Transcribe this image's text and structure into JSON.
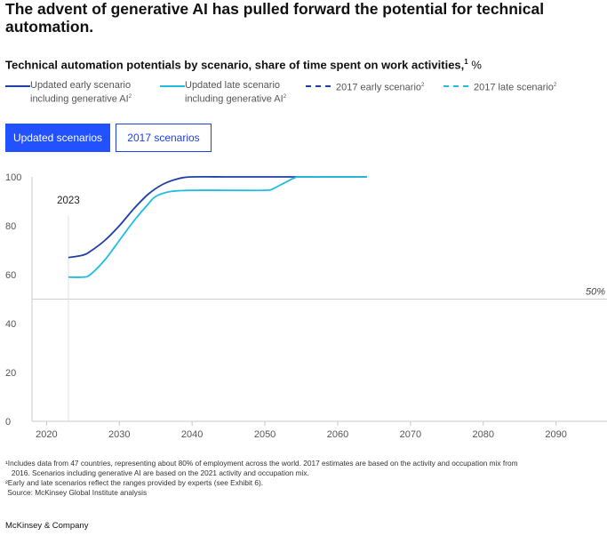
{
  "headline": "The advent of generative AI has pulled forward the potential for technical automation.",
  "subtitle": {
    "text": "Technical automation potentials by scenario, share of time spent on work activities,",
    "sup": "1",
    "unit": "%"
  },
  "legend": [
    {
      "line1": "Updated early scenario",
      "line2": "including generative AI",
      "sup": "2",
      "color": "#1f3fa8",
      "style": "solid"
    },
    {
      "line1": "Updated late scenario",
      "line2": "including generative AI",
      "sup": "2",
      "color": "#1fbde0",
      "style": "solid"
    },
    {
      "line1": "2017 early scenario",
      "line2": "",
      "sup": "2",
      "color": "#1f3fa8",
      "style": "dashed"
    },
    {
      "line1": "2017 late scenario",
      "line2": "",
      "sup": "2",
      "color": "#1fbde0",
      "style": "dashed"
    }
  ],
  "buttons": {
    "updated": "Updated scenarios",
    "y2017": "2017 scenarios"
  },
  "chart_data": {
    "type": "line",
    "title": "Technical automation potentials by scenario, share of time spent on work activities, %",
    "xlabel": "",
    "ylabel": "%",
    "xlim": [
      2018,
      2097
    ],
    "ylim": [
      0,
      100
    ],
    "xticks": [
      2020,
      2030,
      2040,
      2050,
      2060,
      2070,
      2080,
      2090
    ],
    "yticks": [
      0,
      20,
      40,
      60,
      80,
      100
    ],
    "reference_line": {
      "y": 50,
      "label": "50%"
    },
    "vertical_marker": {
      "x": 2023,
      "label": "2023"
    },
    "series": [
      {
        "name": "Updated early scenario including generative AI",
        "color": "#1f3fa8",
        "x": [
          2023,
          2025,
          2026,
          2028,
          2030,
          2032,
          2034,
          2036,
          2038,
          2040,
          2045,
          2050,
          2055,
          2060,
          2064
        ],
        "values": [
          67,
          68,
          69.5,
          74,
          80,
          87,
          93,
          97,
          99.2,
          100,
          100,
          100,
          100,
          100,
          100
        ]
      },
      {
        "name": "Updated late scenario including generative AI",
        "color": "#1fbde0",
        "x": [
          2023,
          2025,
          2026,
          2028,
          2030,
          2032,
          2034,
          2035,
          2037,
          2040,
          2045,
          2050,
          2051,
          2052,
          2053,
          2054,
          2055,
          2060,
          2064
        ],
        "values": [
          59,
          59,
          60,
          66,
          74,
          82,
          89,
          92,
          94,
          94.5,
          94.5,
          94.5,
          95,
          96.5,
          98,
          99.5,
          100,
          100,
          100
        ]
      }
    ]
  },
  "footnotes": [
    "¹Includes data from 47 countries, representing about 80% of employment across the world. 2017 estimates are based on the activity and occupation mix from",
    "   2016. Scenarios including generative AI are based on the 2021 activity and occupation mix.",
    "²Early and late scenarios reflect the ranges provided by experts (see Exhibit 6).",
    " Source: McKinsey Global Institute analysis"
  ],
  "brand": "McKinsey & Company"
}
